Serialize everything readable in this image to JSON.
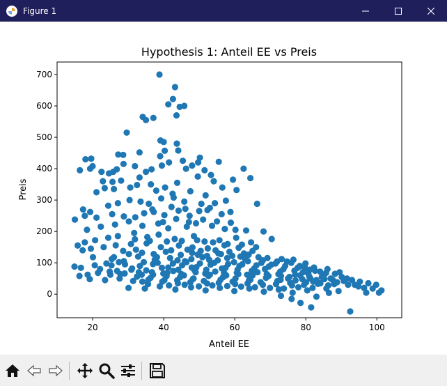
{
  "window": {
    "title": "Figure 1",
    "minimize_icon": "minimize-icon",
    "maximize_icon": "maximize-icon",
    "close_icon": "close-icon"
  },
  "toolbar": {
    "buttons": [
      {
        "name": "home-button",
        "icon": "home-icon"
      },
      {
        "name": "back-button",
        "icon": "back-arrow-icon"
      },
      {
        "name": "forward-button",
        "icon": "forward-arrow-icon"
      },
      {
        "name": "pan-button",
        "icon": "move-icon"
      },
      {
        "name": "zoom-button",
        "icon": "magnifier-icon"
      },
      {
        "name": "configure-subplots-button",
        "icon": "sliders-icon"
      },
      {
        "name": "save-button",
        "icon": "floppy-disk-icon"
      }
    ]
  },
  "chart_data": {
    "type": "scatter",
    "title": "Hypothesis 1: Anteil EE vs Preis",
    "xlabel": "Anteil EE",
    "ylabel": "Preis",
    "xlim": [
      10,
      107
    ],
    "ylim": [
      -75,
      740
    ],
    "xticks": [
      20,
      40,
      60,
      80,
      100
    ],
    "yticks": [
      0,
      100,
      200,
      300,
      400,
      500,
      600,
      700
    ],
    "grid": false,
    "marker_color": "#1f77b4",
    "points": [
      [
        38.8,
        700
      ],
      [
        43.2,
        660
      ],
      [
        42.6,
        622
      ],
      [
        41.3,
        605
      ],
      [
        44.5,
        597
      ],
      [
        45.8,
        600
      ],
      [
        43.6,
        570
      ],
      [
        34.1,
        565
      ],
      [
        35.0,
        555
      ],
      [
        37.1,
        562
      ],
      [
        29.6,
        515
      ],
      [
        39.1,
        490
      ],
      [
        40.0,
        485
      ],
      [
        43.7,
        480
      ],
      [
        27.2,
        445
      ],
      [
        28.6,
        444
      ],
      [
        33.2,
        452
      ],
      [
        40.3,
        457
      ],
      [
        39.0,
        440
      ],
      [
        44.1,
        458
      ],
      [
        50.2,
        435
      ],
      [
        49.7,
        420
      ],
      [
        55.5,
        422
      ],
      [
        62.5,
        400
      ],
      [
        18.0,
        430
      ],
      [
        19.6,
        432
      ],
      [
        19.3,
        400
      ],
      [
        20.0,
        408
      ],
      [
        16.4,
        395
      ],
      [
        22.5,
        390
      ],
      [
        24.6,
        385
      ],
      [
        25.8,
        390
      ],
      [
        26.8,
        398
      ],
      [
        28.7,
        415
      ],
      [
        31.9,
        408
      ],
      [
        35.0,
        390
      ],
      [
        36.6,
        398
      ],
      [
        39.5,
        410
      ],
      [
        41.5,
        420
      ],
      [
        45.4,
        425
      ],
      [
        46.3,
        400
      ],
      [
        48.0,
        410
      ],
      [
        51.5,
        395
      ],
      [
        53.3,
        380
      ],
      [
        22.9,
        360
      ],
      [
        25.6,
        358
      ],
      [
        28.0,
        362
      ],
      [
        33.2,
        372
      ],
      [
        36.4,
        350
      ],
      [
        40.4,
        340
      ],
      [
        43.8,
        355
      ],
      [
        49.6,
        375
      ],
      [
        54.1,
        360
      ],
      [
        59.5,
        365
      ],
      [
        64.4,
        370
      ],
      [
        21.1,
        325
      ],
      [
        23.4,
        338
      ],
      [
        26.0,
        335
      ],
      [
        30.6,
        340
      ],
      [
        32.5,
        348
      ],
      [
        37.9,
        330
      ],
      [
        42.5,
        320
      ],
      [
        47.5,
        328
      ],
      [
        51.8,
        315
      ],
      [
        56.5,
        340
      ],
      [
        60.5,
        332
      ],
      [
        66.3,
        288
      ],
      [
        17.3,
        270
      ],
      [
        19.3,
        262
      ],
      [
        24.4,
        282
      ],
      [
        27.1,
        290
      ],
      [
        30.4,
        300
      ],
      [
        33.5,
        295
      ],
      [
        35.8,
        288
      ],
      [
        39.3,
        305
      ],
      [
        42.8,
        308
      ],
      [
        45.8,
        295
      ],
      [
        50.6,
        288
      ],
      [
        54.4,
        290
      ],
      [
        57.5,
        298
      ],
      [
        15.0,
        238
      ],
      [
        17.8,
        250
      ],
      [
        21.1,
        244
      ],
      [
        25.5,
        255
      ],
      [
        28.8,
        248
      ],
      [
        32.0,
        245
      ],
      [
        34.5,
        258
      ],
      [
        37.2,
        262
      ],
      [
        40.2,
        252
      ],
      [
        44.2,
        266
      ],
      [
        47.3,
        250
      ],
      [
        52.3,
        268
      ],
      [
        56.3,
        255
      ],
      [
        58.8,
        262
      ],
      [
        18.4,
        205
      ],
      [
        22.3,
        215
      ],
      [
        26.3,
        222
      ],
      [
        30.2,
        232
      ],
      [
        34.0,
        218
      ],
      [
        38.5,
        225
      ],
      [
        41.3,
        210
      ],
      [
        46.5,
        215
      ],
      [
        49.1,
        226
      ],
      [
        53.6,
        218
      ],
      [
        57.2,
        208
      ],
      [
        60.2,
        205
      ],
      [
        63.2,
        203
      ],
      [
        68.1,
        200
      ],
      [
        15.8,
        155
      ],
      [
        17.8,
        165
      ],
      [
        20.7,
        172
      ],
      [
        24.4,
        180
      ],
      [
        27.1,
        185
      ],
      [
        31.7,
        195
      ],
      [
        35.4,
        182
      ],
      [
        38.6,
        190
      ],
      [
        43.1,
        176
      ],
      [
        48.5,
        185
      ],
      [
        51.5,
        168
      ],
      [
        55.7,
        172
      ],
      [
        60.4,
        180
      ],
      [
        64.6,
        165
      ],
      [
        70.4,
        176
      ],
      [
        17.2,
        140
      ],
      [
        19.5,
        145
      ],
      [
        23.1,
        150
      ],
      [
        26.5,
        156
      ],
      [
        30.8,
        160
      ],
      [
        35.2,
        162
      ],
      [
        39.2,
        150
      ],
      [
        44.3,
        155
      ],
      [
        48.1,
        149
      ],
      [
        52.4,
        146
      ],
      [
        57.1,
        156
      ],
      [
        61.1,
        148
      ],
      [
        65.0,
        138
      ],
      [
        73.2,
        112
      ],
      [
        76.5,
        110
      ],
      [
        14.9,
        88
      ],
      [
        16.7,
        84
      ],
      [
        20.1,
        118
      ],
      [
        25.4,
        112
      ],
      [
        28.8,
        105
      ],
      [
        32.8,
        120
      ],
      [
        37.5,
        110
      ],
      [
        41.8,
        115
      ],
      [
        46.0,
        105
      ],
      [
        50.9,
        118
      ],
      [
        55.2,
        108
      ],
      [
        59.8,
        102
      ],
      [
        63.7,
        105
      ],
      [
        67.5,
        100
      ],
      [
        71.5,
        98
      ],
      [
        74.7,
        104
      ],
      [
        78.3,
        90
      ],
      [
        79.8,
        83
      ],
      [
        81.1,
        78
      ],
      [
        82.6,
        75
      ],
      [
        84.0,
        72
      ],
      [
        85.7,
        68
      ],
      [
        88.2,
        65
      ],
      [
        90.1,
        55
      ],
      [
        91.6,
        50
      ],
      [
        93.0,
        45
      ],
      [
        95.2,
        40
      ],
      [
        97.6,
        35
      ],
      [
        99.8,
        30
      ],
      [
        101.3,
        12
      ],
      [
        100.6,
        5
      ],
      [
        97.0,
        5
      ],
      [
        92.5,
        -55
      ],
      [
        81.5,
        -42
      ],
      [
        78.5,
        -28
      ],
      [
        76.0,
        -15
      ],
      [
        83.0,
        -8
      ],
      [
        73.0,
        -5
      ],
      [
        89.2,
        10
      ],
      [
        86.5,
        4
      ],
      [
        16.3,
        58
      ],
      [
        18.6,
        62
      ],
      [
        21.5,
        68
      ],
      [
        24.8,
        72
      ],
      [
        27.8,
        64
      ],
      [
        30.9,
        78
      ],
      [
        33.8,
        62
      ],
      [
        36.7,
        70
      ],
      [
        39.9,
        66
      ],
      [
        42.7,
        74
      ],
      [
        45.7,
        60
      ],
      [
        48.7,
        76
      ],
      [
        51.7,
        66
      ],
      [
        54.5,
        72
      ],
      [
        57.6,
        60
      ],
      [
        60.6,
        68
      ],
      [
        63.5,
        62
      ],
      [
        66.4,
        70
      ],
      [
        69.5,
        58
      ],
      [
        72.3,
        64
      ],
      [
        75.4,
        55
      ],
      [
        78.4,
        60
      ],
      [
        81.3,
        50
      ],
      [
        84.5,
        55
      ],
      [
        87.6,
        45
      ],
      [
        90.7,
        42
      ],
      [
        19.2,
        48
      ],
      [
        23.5,
        45
      ],
      [
        27.6,
        50
      ],
      [
        31.4,
        42
      ],
      [
        35.7,
        46
      ],
      [
        39.6,
        40
      ],
      [
        43.8,
        44
      ],
      [
        47.5,
        38
      ],
      [
        51.3,
        42
      ],
      [
        55.5,
        36
      ],
      [
        59.4,
        40
      ],
      [
        63.6,
        34
      ],
      [
        67.3,
        38
      ],
      [
        71.6,
        32
      ],
      [
        75.6,
        36
      ],
      [
        79.5,
        30
      ],
      [
        83.4,
        33
      ],
      [
        86.3,
        28
      ],
      [
        30.1,
        20
      ],
      [
        34.7,
        18
      ],
      [
        38.9,
        25
      ],
      [
        43.3,
        15
      ],
      [
        47.7,
        22
      ],
      [
        51.8,
        12
      ],
      [
        55.8,
        20
      ],
      [
        59.9,
        10
      ],
      [
        64.1,
        18
      ],
      [
        68.2,
        8
      ],
      [
        72.4,
        15
      ],
      [
        76.3,
        5
      ],
      [
        80.4,
        12
      ],
      [
        37.2,
        128
      ],
      [
        40.6,
        135
      ],
      [
        44.8,
        125
      ],
      [
        48.0,
        132
      ],
      [
        52.2,
        122
      ],
      [
        56.1,
        128
      ],
      [
        61.6,
        120
      ],
      [
        66.7,
        118
      ],
      [
        69.2,
        115
      ],
      [
        25.3,
        92
      ],
      [
        29.1,
        95
      ],
      [
        33.3,
        90
      ],
      [
        37.0,
        96
      ],
      [
        41.3,
        85
      ],
      [
        45.2,
        92
      ],
      [
        49.2,
        86
      ],
      [
        53.2,
        94
      ],
      [
        57.4,
        84
      ],
      [
        61.3,
        90
      ],
      [
        65.5,
        82
      ],
      [
        69.6,
        88
      ],
      [
        73.7,
        80
      ],
      [
        77.7,
        84
      ],
      [
        79.2,
        70
      ],
      [
        84.7,
        60
      ],
      [
        22.1,
        80
      ],
      [
        26.9,
        74
      ],
      [
        31.1,
        82
      ],
      [
        35.1,
        76
      ],
      [
        39.5,
        84
      ],
      [
        44.1,
        78
      ],
      [
        47.9,
        85
      ],
      [
        52.0,
        78
      ],
      [
        56.4,
        82
      ],
      [
        60.8,
        78
      ],
      [
        64.8,
        74
      ],
      [
        68.5,
        80
      ],
      [
        72.8,
        72
      ],
      [
        76.8,
        75
      ],
      [
        80.7,
        66
      ],
      [
        85.2,
        48
      ],
      [
        88.8,
        38
      ],
      [
        93.8,
        30
      ],
      [
        96.4,
        20
      ],
      [
        32.5,
        56
      ],
      [
        36.3,
        52
      ],
      [
        40.8,
        58
      ],
      [
        44.6,
        54
      ],
      [
        48.4,
        50
      ],
      [
        52.6,
        58
      ],
      [
        56.7,
        54
      ],
      [
        60.2,
        50
      ],
      [
        64.4,
        46
      ],
      [
        68.8,
        52
      ],
      [
        72.9,
        46
      ],
      [
        77.1,
        44
      ],
      [
        82.1,
        40
      ],
      [
        28.6,
        138
      ],
      [
        32.2,
        142
      ],
      [
        42.1,
        140
      ],
      [
        46.7,
        142
      ],
      [
        50.4,
        138
      ],
      [
        54.6,
        140
      ],
      [
        58.5,
        135
      ],
      [
        62.6,
        130
      ],
      [
        26.0,
        118
      ],
      [
        30.2,
        128
      ],
      [
        34.4,
        102
      ],
      [
        38.3,
        100
      ],
      [
        42.6,
        98
      ],
      [
        46.4,
        102
      ],
      [
        50.2,
        98
      ],
      [
        54.2,
        100
      ],
      [
        58.1,
        96
      ],
      [
        62.1,
        95
      ],
      [
        66.1,
        92
      ],
      [
        70.3,
        94
      ],
      [
        74.2,
        90
      ],
      [
        78.2,
        88
      ],
      [
        82.3,
        85
      ],
      [
        86.1,
        80
      ],
      [
        89.5,
        70
      ],
      [
        35.6,
        32
      ],
      [
        41.5,
        28
      ],
      [
        45.9,
        30
      ],
      [
        49.9,
        25
      ],
      [
        53.7,
        28
      ],
      [
        57.9,
        26
      ],
      [
        61.8,
        24
      ],
      [
        65.7,
        22
      ],
      [
        69.9,
        20
      ],
      [
        73.8,
        18
      ],
      [
        77.9,
        22
      ],
      [
        81.9,
        20
      ],
      [
        85.8,
        18
      ],
      [
        31.9,
        175
      ],
      [
        36.1,
        170
      ],
      [
        40.9,
        168
      ],
      [
        45.1,
        170
      ],
      [
        49.4,
        172
      ],
      [
        53.9,
        165
      ],
      [
        58.0,
        160
      ],
      [
        62.0,
        158
      ],
      [
        66.0,
        150
      ],
      [
        39.8,
        230
      ],
      [
        43.5,
        240
      ],
      [
        47.1,
        230
      ],
      [
        51.1,
        238
      ],
      [
        55.0,
        232
      ],
      [
        58.9,
        228
      ],
      [
        36.8,
        270
      ],
      [
        42.2,
        278
      ],
      [
        46.1,
        272
      ],
      [
        50.0,
        265
      ],
      [
        53.0,
        275
      ],
      [
        20.6,
        92
      ],
      [
        23.9,
        98
      ],
      [
        27.4,
        102
      ],
      [
        47.8,
        112
      ],
      [
        52.8,
        110
      ],
      [
        57.9,
        115
      ],
      [
        62.9,
        112
      ],
      [
        67.9,
        108
      ],
      [
        71.9,
        104
      ],
      [
        75.9,
        100
      ],
      [
        79.9,
        98
      ],
      [
        33.9,
        132
      ],
      [
        38.1,
        118
      ],
      [
        43.9,
        108
      ],
      [
        49.6,
        126
      ],
      [
        55.4,
        130
      ],
      [
        59.3,
        122
      ],
      [
        63.9,
        126
      ],
      [
        34.0,
        40
      ],
      [
        40.2,
        45
      ],
      [
        44.0,
        35
      ],
      [
        48.2,
        48
      ],
      [
        52.2,
        34
      ],
      [
        56.0,
        46
      ],
      [
        60.1,
        32
      ],
      [
        64.0,
        44
      ],
      [
        67.9,
        30
      ],
      [
        72.0,
        42
      ],
      [
        76.1,
        28
      ],
      [
        80.1,
        38
      ],
      [
        84.1,
        35
      ],
      [
        88.0,
        32
      ],
      [
        91.9,
        30
      ],
      [
        94.8,
        25
      ],
      [
        98.8,
        18
      ],
      [
        25.0,
        62
      ],
      [
        29.0,
        66
      ],
      [
        33.0,
        70
      ],
      [
        37.0,
        62
      ],
      [
        41.0,
        68
      ],
      [
        45.0,
        64
      ],
      [
        49.0,
        70
      ],
      [
        53.0,
        62
      ],
      [
        57.0,
        68
      ],
      [
        61.0,
        64
      ],
      [
        65.0,
        60
      ],
      [
        69.0,
        64
      ],
      [
        73.0,
        58
      ],
      [
        77.0,
        62
      ],
      [
        81.0,
        56
      ],
      [
        85.0,
        58
      ],
      [
        87.0,
        50
      ],
      [
        83.0,
        45
      ],
      [
        79.0,
        48
      ],
      [
        75.0,
        50
      ]
    ]
  }
}
